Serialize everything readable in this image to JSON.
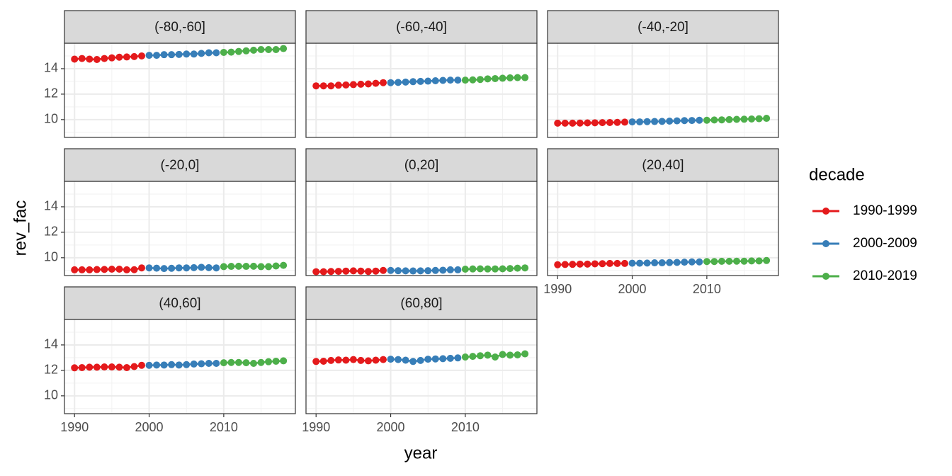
{
  "chart_data": {
    "type": "line",
    "xlabel": "year",
    "ylabel": "rev_fac",
    "legend_title": "decade",
    "legend_position": "right",
    "grid": true,
    "xlim": [
      1988.65,
      2019.6
    ],
    "ylim": [
      8.6,
      16.0
    ],
    "xticks": [
      1990,
      2000,
      2010
    ],
    "yticks": [
      10,
      12,
      14
    ],
    "series": [
      {
        "name": "1990-1999",
        "color": "#e41a1c",
        "x": [
          1990,
          1991,
          1992,
          1993,
          1994,
          1995,
          1996,
          1997,
          1998,
          1999
        ]
      },
      {
        "name": "2000-2009",
        "color": "#377eb8",
        "x": [
          2000,
          2001,
          2002,
          2003,
          2004,
          2005,
          2006,
          2007,
          2008,
          2009
        ]
      },
      {
        "name": "2010-2019",
        "color": "#4daf4a",
        "x": [
          2010,
          2011,
          2012,
          2013,
          2014,
          2015,
          2016,
          2017,
          2018
        ]
      }
    ],
    "facets": [
      {
        "title": "(-80,-60]",
        "values": [
          [
            14.75,
            14.8,
            14.75,
            14.72,
            14.8,
            14.85,
            14.9,
            14.92,
            14.95,
            15.0
          ],
          [
            15.05,
            15.05,
            15.1,
            15.1,
            15.12,
            15.15,
            15.15,
            15.2,
            15.25,
            15.25
          ],
          [
            15.28,
            15.3,
            15.35,
            15.4,
            15.45,
            15.5,
            15.5,
            15.5,
            15.58
          ]
        ]
      },
      {
        "title": "(-60,-40]",
        "values": [
          [
            12.65,
            12.65,
            12.65,
            12.7,
            12.72,
            12.75,
            12.78,
            12.8,
            12.85,
            12.9
          ],
          [
            12.9,
            12.92,
            12.95,
            12.98,
            13.0,
            13.02,
            13.05,
            13.08,
            13.1,
            13.1
          ],
          [
            13.1,
            13.12,
            13.15,
            13.2,
            13.22,
            13.25,
            13.28,
            13.3,
            13.3
          ]
        ]
      },
      {
        "title": "(-40,-20]",
        "values": [
          [
            9.72,
            9.72,
            9.72,
            9.73,
            9.74,
            9.75,
            9.76,
            9.77,
            9.78,
            9.8
          ],
          [
            9.82,
            9.82,
            9.84,
            9.85,
            9.86,
            9.88,
            9.9,
            9.92,
            9.93,
            9.95
          ],
          [
            9.95,
            9.97,
            9.98,
            10.0,
            10.02,
            10.03,
            10.05,
            10.07,
            10.1
          ]
        ]
      },
      {
        "title": "(-20,0]",
        "values": [
          [
            9.05,
            9.05,
            9.05,
            9.07,
            9.08,
            9.1,
            9.1,
            9.05,
            9.06,
            9.2
          ],
          [
            9.2,
            9.18,
            9.15,
            9.17,
            9.2,
            9.2,
            9.22,
            9.25,
            9.22,
            9.2
          ],
          [
            9.3,
            9.32,
            9.33,
            9.32,
            9.33,
            9.3,
            9.3,
            9.35,
            9.4
          ]
        ]
      },
      {
        "title": "(0,20]",
        "values": [
          [
            8.9,
            8.9,
            8.92,
            8.93,
            8.95,
            8.97,
            8.95,
            8.92,
            8.95,
            9.0
          ],
          [
            9.0,
            8.98,
            8.97,
            8.96,
            8.97,
            8.98,
            9.0,
            9.02,
            9.05,
            9.05
          ],
          [
            9.1,
            9.12,
            9.13,
            9.12,
            9.12,
            9.13,
            9.15,
            9.18,
            9.2
          ]
        ]
      },
      {
        "title": "(20,40]",
        "values": [
          [
            9.45,
            9.47,
            9.48,
            9.5,
            9.5,
            9.52,
            9.53,
            9.55,
            9.55,
            9.55
          ],
          [
            9.57,
            9.57,
            9.58,
            9.6,
            9.6,
            9.62,
            9.63,
            9.65,
            9.67,
            9.67
          ],
          [
            9.7,
            9.7,
            9.72,
            9.72,
            9.73,
            9.73,
            9.75,
            9.75,
            9.78
          ]
        ]
      },
      {
        "title": "(40,60]",
        "values": [
          [
            12.2,
            12.22,
            12.25,
            12.25,
            12.27,
            12.27,
            12.25,
            12.22,
            12.3,
            12.4
          ],
          [
            12.4,
            12.42,
            12.42,
            12.45,
            12.42,
            12.45,
            12.5,
            12.52,
            12.55,
            12.55
          ],
          [
            12.6,
            12.62,
            12.62,
            12.6,
            12.55,
            12.62,
            12.68,
            12.72,
            12.75
          ]
        ]
      },
      {
        "title": "(60,80]",
        "values": [
          [
            12.7,
            12.72,
            12.78,
            12.82,
            12.8,
            12.85,
            12.78,
            12.75,
            12.8,
            12.85
          ],
          [
            12.88,
            12.85,
            12.8,
            12.7,
            12.78,
            12.88,
            12.9,
            12.92,
            12.95,
            12.98
          ],
          [
            13.05,
            13.1,
            13.15,
            13.2,
            13.05,
            13.25,
            13.2,
            13.22,
            13.3
          ]
        ]
      }
    ]
  }
}
